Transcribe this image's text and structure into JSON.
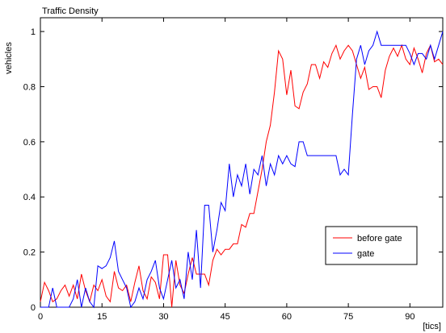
{
  "chart_data": {
    "type": "line",
    "title": "Traffic Density",
    "ylabel": "vehicles",
    "xlabel": "[tics]",
    "xlim": [
      0,
      98
    ],
    "ylim": [
      0,
      1.05
    ],
    "xticks": [
      0,
      15,
      30,
      45,
      60,
      75,
      90
    ],
    "yticks": [
      0,
      0.2,
      0.4,
      0.6,
      0.8,
      1
    ],
    "ytick_labels": [
      "0",
      "0.2",
      "0.4",
      "0.6",
      "0.8",
      "1"
    ],
    "grid": false,
    "legend": {
      "position": "bottom-right",
      "entries": [
        "before gate",
        "gate"
      ]
    },
    "x": [
      0,
      1,
      2,
      3,
      4,
      5,
      6,
      7,
      8,
      9,
      10,
      11,
      12,
      13,
      14,
      15,
      16,
      17,
      18,
      19,
      20,
      21,
      22,
      23,
      24,
      25,
      26,
      27,
      28,
      29,
      30,
      31,
      32,
      33,
      34,
      35,
      36,
      37,
      38,
      39,
      40,
      41,
      42,
      43,
      44,
      45,
      46,
      47,
      48,
      49,
      50,
      51,
      52,
      53,
      54,
      55,
      56,
      57,
      58,
      59,
      60,
      61,
      62,
      63,
      64,
      65,
      66,
      67,
      68,
      69,
      70,
      71,
      72,
      73,
      74,
      75,
      76,
      77,
      78,
      79,
      80,
      81,
      82,
      83,
      84,
      85,
      86,
      87,
      88,
      89,
      90,
      91,
      92,
      93,
      94,
      95,
      96,
      97,
      98
    ],
    "series": [
      {
        "name": "before gate",
        "color": "#ff0000",
        "values": [
          0.02,
          0.09,
          0.06,
          0.02,
          0.03,
          0.06,
          0.08,
          0.04,
          0.08,
          0.03,
          0.12,
          0.06,
          0.02,
          0.08,
          0.06,
          0.1,
          0.04,
          0.02,
          0.13,
          0.07,
          0.06,
          0.08,
          0.02,
          0.09,
          0.15,
          0.06,
          0.03,
          0.11,
          0.09,
          0.03,
          0.19,
          0.19,
          0.0,
          0.17,
          0.08,
          0.05,
          0.12,
          0.18,
          0.12,
          0.12,
          0.12,
          0.08,
          0.17,
          0.21,
          0.19,
          0.21,
          0.21,
          0.23,
          0.23,
          0.3,
          0.29,
          0.34,
          0.34,
          0.42,
          0.5,
          0.6,
          0.66,
          0.78,
          0.93,
          0.9,
          0.77,
          0.86,
          0.73,
          0.72,
          0.78,
          0.81,
          0.88,
          0.88,
          0.83,
          0.89,
          0.87,
          0.92,
          0.95,
          0.9,
          0.93,
          0.95,
          0.93,
          0.88,
          0.83,
          0.87,
          0.79,
          0.8,
          0.8,
          0.76,
          0.86,
          0.91,
          0.94,
          0.91,
          0.95,
          0.9,
          0.88,
          0.94,
          0.9,
          0.85,
          0.92,
          0.95,
          0.89,
          0.9,
          0.88
        ]
      },
      {
        "name": "gate",
        "color": "#0000ff",
        "values": [
          0.0,
          0.0,
          0.0,
          0.07,
          0.0,
          0.0,
          0.0,
          0.0,
          0.03,
          0.1,
          0.0,
          0.07,
          0.02,
          0.0,
          0.15,
          0.14,
          0.15,
          0.18,
          0.24,
          0.13,
          0.1,
          0.07,
          0.0,
          0.02,
          0.07,
          0.03,
          0.1,
          0.13,
          0.17,
          0.07,
          0.03,
          0.1,
          0.17,
          0.07,
          0.1,
          0.03,
          0.2,
          0.1,
          0.28,
          0.07,
          0.37,
          0.37,
          0.2,
          0.28,
          0.38,
          0.35,
          0.52,
          0.4,
          0.48,
          0.44,
          0.52,
          0.41,
          0.5,
          0.48,
          0.55,
          0.44,
          0.52,
          0.48,
          0.55,
          0.52,
          0.55,
          0.52,
          0.51,
          0.6,
          0.6,
          0.55,
          0.55,
          0.55,
          0.55,
          0.55,
          0.55,
          0.55,
          0.55,
          0.48,
          0.5,
          0.48,
          0.7,
          0.9,
          0.95,
          0.88,
          0.93,
          0.95,
          1.0,
          0.95,
          0.95,
          0.95,
          0.95,
          0.95,
          0.95,
          0.95,
          0.92,
          0.88,
          0.92,
          0.92,
          0.9,
          0.95,
          0.9,
          0.95,
          1.0
        ]
      }
    ]
  }
}
